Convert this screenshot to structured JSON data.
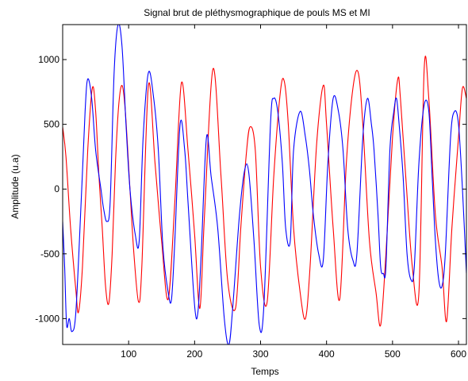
{
  "chart_data": {
    "type": "line",
    "title": "Signal brut de pléthysmographique de pouls MS et MI",
    "xlabel": "Temps",
    "ylabel": "Amplitude (u.a)",
    "xlim": [
      0,
      612
    ],
    "ylim": [
      -1200,
      1270
    ],
    "xticks": [
      100,
      200,
      300,
      400,
      500,
      600
    ],
    "xtick_labels": [
      "100",
      "200",
      "300",
      "400",
      "500",
      "600"
    ],
    "yticks": [
      -1000,
      -500,
      0,
      500,
      1000
    ],
    "ytick_labels": [
      "-1000",
      "-500",
      "0",
      "500",
      "1000"
    ],
    "grid": false,
    "legend": "none",
    "series": [
      {
        "color": "#ff0000",
        "keypoints": [
          [
            0,
            480
          ],
          [
            5,
            250
          ],
          [
            12,
            -300
          ],
          [
            20,
            -780
          ],
          [
            24,
            -950
          ],
          [
            30,
            -600
          ],
          [
            38,
            300
          ],
          [
            45,
            780
          ],
          [
            50,
            600
          ],
          [
            55,
            100
          ],
          [
            60,
            -300
          ],
          [
            65,
            -750
          ],
          [
            70,
            -880
          ],
          [
            75,
            -500
          ],
          [
            80,
            200
          ],
          [
            85,
            650
          ],
          [
            90,
            800
          ],
          [
            95,
            600
          ],
          [
            102,
            0
          ],
          [
            108,
            -500
          ],
          [
            115,
            -870
          ],
          [
            120,
            -600
          ],
          [
            130,
            800
          ],
          [
            140,
            200
          ],
          [
            150,
            -400
          ],
          [
            160,
            -850
          ],
          [
            170,
            -100
          ],
          [
            180,
            820
          ],
          [
            190,
            300
          ],
          [
            200,
            -350
          ],
          [
            208,
            -920
          ],
          [
            215,
            -200
          ],
          [
            228,
            930
          ],
          [
            240,
            100
          ],
          [
            250,
            -700
          ],
          [
            262,
            -920
          ],
          [
            270,
            -300
          ],
          [
            278,
            250
          ],
          [
            284,
            480
          ],
          [
            292,
            300
          ],
          [
            300,
            -600
          ],
          [
            310,
            -870
          ],
          [
            320,
            100
          ],
          [
            330,
            750
          ],
          [
            336,
            830
          ],
          [
            342,
            500
          ],
          [
            350,
            -300
          ],
          [
            360,
            -800
          ],
          [
            368,
            -1000
          ],
          [
            375,
            -600
          ],
          [
            385,
            350
          ],
          [
            395,
            800
          ],
          [
            400,
            500
          ],
          [
            410,
            -300
          ],
          [
            420,
            -850
          ],
          [
            430,
            200
          ],
          [
            440,
            780
          ],
          [
            448,
            900
          ],
          [
            455,
            500
          ],
          [
            465,
            -400
          ],
          [
            475,
            -800
          ],
          [
            482,
            -1050
          ],
          [
            490,
            -500
          ],
          [
            500,
            400
          ],
          [
            508,
            850
          ],
          [
            512,
            700
          ],
          [
            520,
            100
          ],
          [
            530,
            -600
          ],
          [
            540,
            -800
          ],
          [
            548,
            930
          ],
          [
            555,
            700
          ],
          [
            565,
            -200
          ],
          [
            575,
            -600
          ],
          [
            582,
            -1020
          ],
          [
            590,
            -300
          ],
          [
            600,
            400
          ],
          [
            606,
            780
          ],
          [
            612,
            700
          ]
        ]
      },
      {
        "color": "#0000ff",
        "keypoints": [
          [
            0,
            -250
          ],
          [
            3,
            -600
          ],
          [
            6,
            -1050
          ],
          [
            10,
            -1000
          ],
          [
            14,
            -1100
          ],
          [
            20,
            -950
          ],
          [
            28,
            -100
          ],
          [
            34,
            600
          ],
          [
            38,
            850
          ],
          [
            44,
            700
          ],
          [
            50,
            300
          ],
          [
            58,
            0
          ],
          [
            62,
            -150
          ],
          [
            67,
            -250
          ],
          [
            72,
            -100
          ],
          [
            78,
            900
          ],
          [
            84,
            1270
          ],
          [
            90,
            1100
          ],
          [
            96,
            500
          ],
          [
            102,
            0
          ],
          [
            110,
            -350
          ],
          [
            116,
            -400
          ],
          [
            122,
            400
          ],
          [
            130,
            900
          ],
          [
            138,
            700
          ],
          [
            145,
            300
          ],
          [
            152,
            -450
          ],
          [
            160,
            -800
          ],
          [
            165,
            -850
          ],
          [
            170,
            -400
          ],
          [
            178,
            500
          ],
          [
            185,
            300
          ],
          [
            190,
            -100
          ],
          [
            200,
            -900
          ],
          [
            205,
            -950
          ],
          [
            210,
            -500
          ],
          [
            218,
            400
          ],
          [
            225,
            100
          ],
          [
            235,
            -300
          ],
          [
            245,
            -1000
          ],
          [
            252,
            -1200
          ],
          [
            258,
            -900
          ],
          [
            268,
            -200
          ],
          [
            276,
            150
          ],
          [
            282,
            130
          ],
          [
            290,
            -400
          ],
          [
            298,
            -1050
          ],
          [
            305,
            -900
          ],
          [
            315,
            500
          ],
          [
            320,
            700
          ],
          [
            326,
            600
          ],
          [
            333,
            200
          ],
          [
            338,
            -300
          ],
          [
            345,
            -400
          ],
          [
            350,
            300
          ],
          [
            360,
            600
          ],
          [
            368,
            400
          ],
          [
            374,
            150
          ],
          [
            380,
            -200
          ],
          [
            388,
            -500
          ],
          [
            395,
            -550
          ],
          [
            402,
            200
          ],
          [
            410,
            700
          ],
          [
            418,
            600
          ],
          [
            425,
            300
          ],
          [
            432,
            -300
          ],
          [
            440,
            -550
          ],
          [
            446,
            -500
          ],
          [
            455,
            400
          ],
          [
            462,
            700
          ],
          [
            468,
            500
          ],
          [
            472,
            300
          ],
          [
            478,
            -200
          ],
          [
            482,
            -600
          ],
          [
            486,
            -650
          ],
          [
            490,
            -600
          ],
          [
            496,
            300
          ],
          [
            502,
            600
          ],
          [
            506,
            700
          ],
          [
            510,
            500
          ],
          [
            516,
            100
          ],
          [
            522,
            -500
          ],
          [
            528,
            -700
          ],
          [
            533,
            -600
          ],
          [
            540,
            200
          ],
          [
            548,
            650
          ],
          [
            555,
            600
          ],
          [
            560,
            100
          ],
          [
            565,
            -400
          ],
          [
            570,
            -700
          ],
          [
            575,
            -750
          ],
          [
            580,
            -500
          ],
          [
            588,
            400
          ],
          [
            594,
            600
          ],
          [
            600,
            500
          ],
          [
            606,
            0
          ],
          [
            612,
            -650
          ]
        ]
      }
    ]
  }
}
